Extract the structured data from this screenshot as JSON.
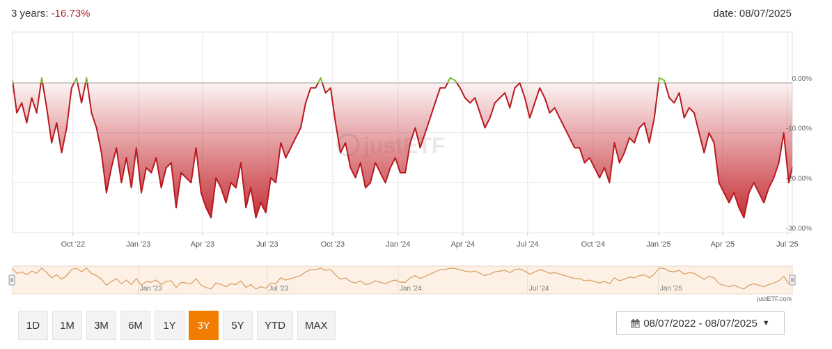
{
  "header": {
    "period_label": "3 years:",
    "period_return": "-16.73%",
    "date_label": "date: 08/07/2025"
  },
  "range_buttons": [
    {
      "label": "1D",
      "active": false
    },
    {
      "label": "1M",
      "active": false
    },
    {
      "label": "3M",
      "active": false
    },
    {
      "label": "6M",
      "active": false
    },
    {
      "label": "1Y",
      "active": false
    },
    {
      "label": "3Y",
      "active": true
    },
    {
      "label": "5Y",
      "active": false
    },
    {
      "label": "YTD",
      "active": false
    },
    {
      "label": "MAX",
      "active": false
    }
  ],
  "date_range": {
    "label": "08/07/2022 - 08/07/2025",
    "icon": "calendar-icon"
  },
  "credits": "justETF.com",
  "watermark": "justETF",
  "colors": {
    "drawdown_line": "#b8191f",
    "above_zero_line": "#7cb82f",
    "fill_dark": "#c2262d",
    "navigator_line": "#d9a066",
    "navigator_bg": "#fdf1e6",
    "active_button": "#f07c00"
  },
  "chart_data": {
    "type": "area",
    "ylim": [
      -30,
      0
    ],
    "yticks": [
      0,
      -10,
      -20,
      -30
    ],
    "ytick_labels": [
      "0.00%",
      "-10.00%",
      "-20.00%",
      "-30.00%"
    ],
    "grid": true,
    "x_start": "2022-07-08",
    "x_end": "2025-07-08",
    "xticks": [
      {
        "date": "2022-10-01",
        "label": "Oct '22"
      },
      {
        "date": "2023-01-01",
        "label": "Jan '23"
      },
      {
        "date": "2023-04-01",
        "label": "Apr '23"
      },
      {
        "date": "2023-07-01",
        "label": "Jul '23"
      },
      {
        "date": "2023-10-01",
        "label": "Oct '23"
      },
      {
        "date": "2024-01-01",
        "label": "Jan '24"
      },
      {
        "date": "2024-04-01",
        "label": "Apr '24"
      },
      {
        "date": "2024-07-01",
        "label": "Jul '24"
      },
      {
        "date": "2024-10-01",
        "label": "Oct '24"
      },
      {
        "date": "2025-01-01",
        "label": "Jan '25"
      },
      {
        "date": "2025-04-01",
        "label": "Apr '25"
      },
      {
        "date": "2025-07-01",
        "label": "Jul '25"
      }
    ],
    "navigator_ticks": [
      "Jan '23",
      "Jul '23",
      "Jan '24",
      "Jul '24",
      "Jan '25"
    ],
    "series": [
      {
        "x": [
          "2022-07-08",
          "2022-07-14",
          "2022-07-21",
          "2022-07-28",
          "2022-08-04",
          "2022-08-11",
          "2022-08-18",
          "2022-08-25",
          "2022-09-01",
          "2022-09-08",
          "2022-09-15",
          "2022-09-22",
          "2022-09-29",
          "2022-10-06",
          "2022-10-13",
          "2022-10-20",
          "2022-10-27",
          "2022-11-03",
          "2022-11-10",
          "2022-11-17",
          "2022-11-24",
          "2022-12-01",
          "2022-12-08",
          "2022-12-15",
          "2022-12-22",
          "2022-12-29",
          "2023-01-05",
          "2023-01-12",
          "2023-01-19",
          "2023-01-26",
          "2023-02-02",
          "2023-02-09",
          "2023-02-16",
          "2023-02-23",
          "2023-03-02",
          "2023-03-09",
          "2023-03-16",
          "2023-03-23",
          "2023-03-30",
          "2023-04-06",
          "2023-04-13",
          "2023-04-20",
          "2023-04-27",
          "2023-05-04",
          "2023-05-11",
          "2023-05-18",
          "2023-05-25",
          "2023-06-01",
          "2023-06-08",
          "2023-06-15",
          "2023-06-22",
          "2023-06-29",
          "2023-07-06",
          "2023-07-13",
          "2023-07-20",
          "2023-07-27",
          "2023-08-03",
          "2023-08-10",
          "2023-08-17",
          "2023-08-24",
          "2023-08-31",
          "2023-09-07",
          "2023-09-14",
          "2023-09-21",
          "2023-09-28",
          "2023-10-05",
          "2023-10-12",
          "2023-10-19",
          "2023-10-26",
          "2023-11-02",
          "2023-11-09",
          "2023-11-16",
          "2023-11-23",
          "2023-11-30",
          "2023-12-07",
          "2023-12-14",
          "2023-12-21",
          "2023-12-28",
          "2024-01-04",
          "2024-01-11",
          "2024-01-18",
          "2024-01-25",
          "2024-02-01",
          "2024-02-08",
          "2024-02-15",
          "2024-02-22",
          "2024-02-29",
          "2024-03-07",
          "2024-03-14",
          "2024-03-21",
          "2024-03-28",
          "2024-04-04",
          "2024-04-11",
          "2024-04-18",
          "2024-04-25",
          "2024-05-02",
          "2024-05-09",
          "2024-05-16",
          "2024-05-23",
          "2024-05-30",
          "2024-06-06",
          "2024-06-13",
          "2024-06-20",
          "2024-06-27",
          "2024-07-04",
          "2024-07-11",
          "2024-07-18",
          "2024-07-25",
          "2024-08-01",
          "2024-08-08",
          "2024-08-15",
          "2024-08-22",
          "2024-08-29",
          "2024-09-05",
          "2024-09-12",
          "2024-09-19",
          "2024-09-26",
          "2024-10-03",
          "2024-10-10",
          "2024-10-17",
          "2024-10-24",
          "2024-10-31",
          "2024-11-07",
          "2024-11-14",
          "2024-11-21",
          "2024-11-28",
          "2024-12-05",
          "2024-12-12",
          "2024-12-19",
          "2024-12-26",
          "2025-01-02",
          "2025-01-09",
          "2025-01-16",
          "2025-01-23",
          "2025-01-30",
          "2025-02-06",
          "2025-02-13",
          "2025-02-20",
          "2025-02-27",
          "2025-03-06",
          "2025-03-13",
          "2025-03-20",
          "2025-03-27",
          "2025-04-03",
          "2025-04-10",
          "2025-04-17",
          "2025-04-24",
          "2025-05-01",
          "2025-05-08",
          "2025-05-15",
          "2025-05-22",
          "2025-05-29",
          "2025-06-05",
          "2025-06-12",
          "2025-06-19",
          "2025-06-26",
          "2025-07-03",
          "2025-07-08"
        ],
        "y": [
          0.5,
          -6,
          -4,
          -8,
          -3,
          -6,
          1,
          -5,
          -12,
          -8,
          -14,
          -9,
          -1,
          1,
          -4,
          1,
          -6,
          -9,
          -14,
          -22,
          -17,
          -13,
          -20,
          -15,
          -21,
          -13,
          -22,
          -17,
          -18,
          -15,
          -21,
          -17,
          -16,
          -25,
          -18,
          -19,
          -20,
          -13,
          -22,
          -25,
          -27,
          -19,
          -21,
          -24,
          -20,
          -21,
          -16,
          -25,
          -21,
          -27,
          -24,
          -26,
          -19,
          -20,
          -12,
          -15,
          -13,
          -11,
          -9,
          -4,
          -1,
          -1,
          1,
          -2,
          -1,
          -8,
          -14,
          -12,
          -17,
          -19,
          -16,
          -21,
          -20,
          -16,
          -18,
          -20,
          -17,
          -15,
          -18,
          -18,
          -12,
          -9,
          -13,
          -10,
          -7,
          -4,
          -1,
          -1,
          1,
          0.5,
          -1,
          -3,
          -4,
          -3,
          -6,
          -9,
          -7,
          -4,
          -3,
          -2,
          -5,
          -1,
          0,
          -3,
          -7,
          -4,
          -1,
          -3,
          -6,
          -5,
          -7,
          -9,
          -11,
          -13,
          -13,
          -16,
          -15,
          -17,
          -19,
          -17,
          -20,
          -12,
          -16,
          -14,
          -11,
          -12,
          -9,
          -8,
          -12,
          -7,
          1,
          0.5,
          -3,
          -4,
          -2,
          -7,
          -5,
          -6,
          -10,
          -14,
          -10,
          -12,
          -20,
          -22,
          -24,
          -22,
          -25,
          -27,
          -22,
          -20,
          -22,
          -24,
          -21,
          -19,
          -16,
          -10,
          -20,
          -17
        ]
      }
    ]
  }
}
